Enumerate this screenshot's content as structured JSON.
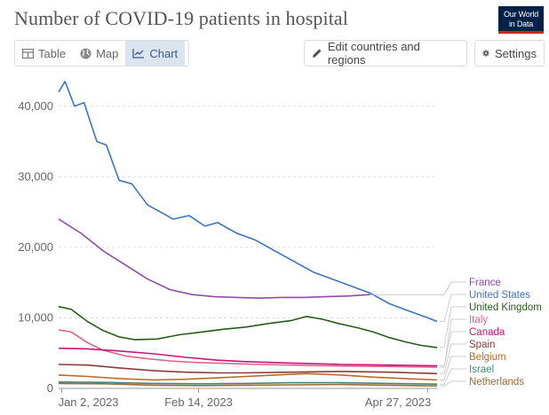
{
  "header": {
    "title": "Number of COVID-19 patients in hospital",
    "logo_line1": "Our World",
    "logo_line2": "in Data"
  },
  "tabs": [
    {
      "label": "Table",
      "icon": "table-icon"
    },
    {
      "label": "Map",
      "icon": "globe-icon"
    },
    {
      "label": "Chart",
      "icon": "line-chart-icon",
      "active": true
    }
  ],
  "toolbar": {
    "edit_label": "Edit countries and regions",
    "settings_label": "Settings"
  },
  "chart_data": {
    "type": "line",
    "title": "Number of COVID-19 patients in hospital",
    "xlabel": "",
    "ylabel": "",
    "x_ticks": [
      "Jan 2, 2023",
      "Feb 14, 2023",
      "Apr 27, 2023"
    ],
    "x_range": [
      "2023-01-01",
      "2023-04-30"
    ],
    "ylim": [
      0,
      45000
    ],
    "y_ticks": [
      0,
      10000,
      20000,
      30000,
      40000
    ],
    "y_tick_labels": [
      "0",
      "10,000",
      "20,000",
      "30,000",
      "40,000"
    ],
    "grid": "horizontal dashed",
    "legend_position": "right, labels at line ends",
    "series": [
      {
        "name": "France",
        "color": "#8a4fac",
        "points": [
          [
            "2023-01-01",
            24000
          ],
          [
            "2023-01-08",
            22000
          ],
          [
            "2023-01-15",
            19500
          ],
          [
            "2023-01-22",
            17500
          ],
          [
            "2023-01-29",
            15500
          ],
          [
            "2023-02-05",
            14000
          ],
          [
            "2023-02-12",
            13300
          ],
          [
            "2023-02-19",
            13000
          ],
          [
            "2023-02-26",
            12900
          ],
          [
            "2023-03-05",
            12800
          ],
          [
            "2023-03-12",
            12900
          ],
          [
            "2023-03-19",
            12900
          ],
          [
            "2023-03-26",
            13000
          ],
          [
            "2023-04-02",
            13100
          ],
          [
            "2023-04-09",
            13300
          ]
        ]
      },
      {
        "name": "United States",
        "color": "#3c74c2",
        "points": [
          [
            "2023-01-01",
            42000
          ],
          [
            "2023-01-03",
            43500
          ],
          [
            "2023-01-06",
            40000
          ],
          [
            "2023-01-09",
            40500
          ],
          [
            "2023-01-13",
            35000
          ],
          [
            "2023-01-16",
            34500
          ],
          [
            "2023-01-20",
            29500
          ],
          [
            "2023-01-24",
            29000
          ],
          [
            "2023-01-29",
            26000
          ],
          [
            "2023-02-02",
            25000
          ],
          [
            "2023-02-06",
            24000
          ],
          [
            "2023-02-11",
            24500
          ],
          [
            "2023-02-16",
            23000
          ],
          [
            "2023-02-20",
            23500
          ],
          [
            "2023-02-26",
            22000
          ],
          [
            "2023-03-04",
            21000
          ],
          [
            "2023-03-10",
            19500
          ],
          [
            "2023-03-16",
            18000
          ],
          [
            "2023-03-22",
            16500
          ],
          [
            "2023-03-28",
            15500
          ],
          [
            "2023-04-03",
            14500
          ],
          [
            "2023-04-09",
            13500
          ],
          [
            "2023-04-15",
            12000
          ],
          [
            "2023-04-21",
            11000
          ],
          [
            "2023-04-27",
            10000
          ],
          [
            "2023-04-30",
            9500
          ]
        ]
      },
      {
        "name": "United Kingdom",
        "color": "#285b1a",
        "points": [
          [
            "2023-01-01",
            11600
          ],
          [
            "2023-01-05",
            11200
          ],
          [
            "2023-01-10",
            9500
          ],
          [
            "2023-01-15",
            8200
          ],
          [
            "2023-01-20",
            7300
          ],
          [
            "2023-01-25",
            6900
          ],
          [
            "2023-02-01",
            7000
          ],
          [
            "2023-02-08",
            7600
          ],
          [
            "2023-02-15",
            8000
          ],
          [
            "2023-02-22",
            8400
          ],
          [
            "2023-03-01",
            8700
          ],
          [
            "2023-03-08",
            9200
          ],
          [
            "2023-03-15",
            9600
          ],
          [
            "2023-03-20",
            10200
          ],
          [
            "2023-03-25",
            9800
          ],
          [
            "2023-03-30",
            9200
          ],
          [
            "2023-04-05",
            8600
          ],
          [
            "2023-04-10",
            8000
          ],
          [
            "2023-04-15",
            7200
          ],
          [
            "2023-04-20",
            6600
          ],
          [
            "2023-04-25",
            6100
          ],
          [
            "2023-04-30",
            5800
          ]
        ]
      },
      {
        "name": "Italy",
        "color": "#e0638a",
        "points": [
          [
            "2023-01-01",
            8300
          ],
          [
            "2023-01-05",
            8000
          ],
          [
            "2023-01-10",
            6500
          ],
          [
            "2023-01-15",
            5400
          ],
          [
            "2023-01-22",
            4600
          ],
          [
            "2023-01-29",
            4200
          ],
          [
            "2023-02-05",
            3900
          ],
          [
            "2023-02-12",
            3700
          ],
          [
            "2023-02-19",
            3600
          ],
          [
            "2023-02-26",
            3500
          ],
          [
            "2023-03-05",
            3400
          ],
          [
            "2023-03-15",
            3300
          ],
          [
            "2023-03-25",
            3200
          ],
          [
            "2023-04-05",
            3150
          ],
          [
            "2023-04-15",
            3100
          ],
          [
            "2023-04-30",
            3000
          ]
        ]
      },
      {
        "name": "Canada",
        "color": "#c6157a",
        "points": [
          [
            "2023-01-01",
            5700
          ],
          [
            "2023-01-10",
            5600
          ],
          [
            "2023-01-20",
            5300
          ],
          [
            "2023-01-31",
            4900
          ],
          [
            "2023-02-10",
            4400
          ],
          [
            "2023-02-20",
            4000
          ],
          [
            "2023-03-01",
            3800
          ],
          [
            "2023-03-15",
            3600
          ],
          [
            "2023-03-31",
            3400
          ],
          [
            "2023-04-15",
            3300
          ],
          [
            "2023-04-30",
            3200
          ]
        ]
      },
      {
        "name": "Spain",
        "color": "#8c3a3a",
        "points": [
          [
            "2023-01-01",
            3400
          ],
          [
            "2023-01-10",
            3300
          ],
          [
            "2023-01-20",
            2900
          ],
          [
            "2023-01-31",
            2500
          ],
          [
            "2023-02-10",
            2300
          ],
          [
            "2023-02-20",
            2200
          ],
          [
            "2023-03-01",
            2200
          ],
          [
            "2023-03-15",
            2300
          ],
          [
            "2023-03-31",
            2400
          ],
          [
            "2023-04-15",
            2300
          ],
          [
            "2023-04-30",
            2100
          ]
        ]
      },
      {
        "name": "Belgium",
        "color": "#b96a28",
        "points": [
          [
            "2023-01-01",
            1900
          ],
          [
            "2023-01-10",
            1700
          ],
          [
            "2023-01-20",
            1400
          ],
          [
            "2023-01-31",
            1200
          ],
          [
            "2023-02-10",
            1300
          ],
          [
            "2023-02-20",
            1500
          ],
          [
            "2023-03-01",
            1700
          ],
          [
            "2023-03-10",
            1900
          ],
          [
            "2023-03-20",
            2100
          ],
          [
            "2023-03-31",
            1900
          ],
          [
            "2023-04-10",
            1600
          ],
          [
            "2023-04-20",
            1400
          ],
          [
            "2023-04-30",
            1200
          ]
        ]
      },
      {
        "name": "Israel",
        "color": "#3e8a7a",
        "points": [
          [
            "2023-01-01",
            900
          ],
          [
            "2023-01-15",
            850
          ],
          [
            "2023-01-31",
            700
          ],
          [
            "2023-02-15",
            650
          ],
          [
            "2023-03-01",
            700
          ],
          [
            "2023-03-15",
            800
          ],
          [
            "2023-03-31",
            800
          ],
          [
            "2023-04-15",
            700
          ],
          [
            "2023-04-30",
            600
          ]
        ]
      },
      {
        "name": "Netherlands",
        "color": "#9c6a34",
        "points": [
          [
            "2023-01-01",
            700
          ],
          [
            "2023-01-15",
            650
          ],
          [
            "2023-01-31",
            450
          ],
          [
            "2023-02-15",
            400
          ],
          [
            "2023-03-01",
            450
          ],
          [
            "2023-03-15",
            500
          ],
          [
            "2023-03-31",
            550
          ],
          [
            "2023-04-15",
            450
          ],
          [
            "2023-04-30",
            350
          ]
        ]
      }
    ]
  }
}
